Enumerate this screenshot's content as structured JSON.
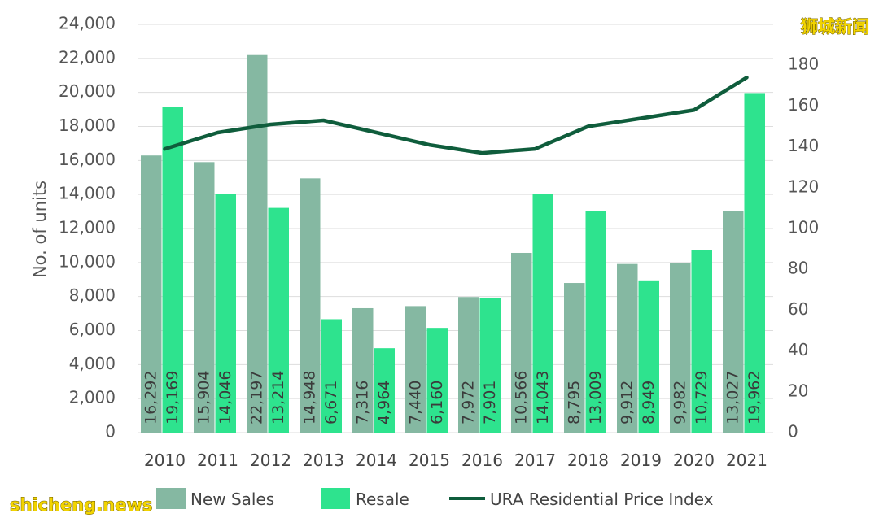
{
  "chart_data": {
    "type": "bar",
    "categories": [
      "2010",
      "2011",
      "2012",
      "2013",
      "2014",
      "2015",
      "2016",
      "2017",
      "2018",
      "2019",
      "2020",
      "2021"
    ],
    "series": [
      {
        "name": "New Sales",
        "kind": "bar",
        "axis": "left",
        "color": "#85b8a2",
        "values": [
          16292,
          15904,
          22197,
          14948,
          7316,
          7440,
          7972,
          10566,
          8795,
          9912,
          9982,
          13027
        ],
        "labels": [
          "16,292",
          "15,904",
          "22,197",
          "14,948",
          "7,316",
          "7,440",
          "7,972",
          "10,566",
          "8,795",
          "9,912",
          "9,982",
          "13,027"
        ]
      },
      {
        "name": "Resale",
        "kind": "bar",
        "axis": "left",
        "color": "#2ee38e",
        "values": [
          19169,
          14046,
          13214,
          6671,
          4964,
          6160,
          7901,
          14043,
          13009,
          8949,
          10729,
          19962
        ],
        "labels": [
          "19,169",
          "14,046",
          "13,214",
          "6,671",
          "4,964",
          "6,160",
          "7,901",
          "14,043",
          "13,009",
          "8,949",
          "10,729",
          "19,962"
        ]
      },
      {
        "name": "URA Residential Price Index",
        "kind": "line",
        "axis": "right",
        "color": "#0f5d3c",
        "values": [
          139,
          147,
          151,
          153,
          147,
          141,
          137,
          139,
          150,
          154,
          158,
          174
        ]
      }
    ],
    "ylabel": "No. of units",
    "ylim": [
      0,
      24000
    ],
    "yticks": [
      "0",
      "2,000",
      "4,000",
      "6,000",
      "8,000",
      "10,000",
      "12,000",
      "14,000",
      "16,000",
      "18,000",
      "20,000",
      "22,000",
      "24,000"
    ],
    "y2lim": [
      0,
      200
    ],
    "y2ticks": [
      "0",
      "20",
      "40",
      "60",
      "80",
      "100",
      "120",
      "140",
      "160",
      "180"
    ],
    "grid": true,
    "legend": "bottom"
  },
  "watermark": {
    "top_right": "狮城新闻",
    "bottom_left": "shicheng.news"
  }
}
